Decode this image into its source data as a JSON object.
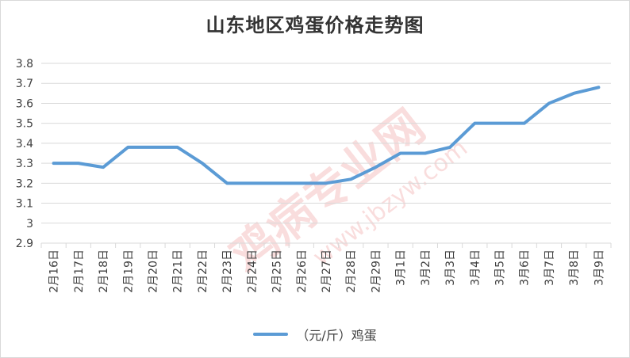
{
  "chart_data": {
    "type": "line",
    "title": "山东地区鸡蛋价格走势图",
    "categories": [
      "2月16日",
      "2月17日",
      "2月18日",
      "2月19日",
      "2月20日",
      "2月21日",
      "2月22日",
      "2月23日",
      "2月24日",
      "2月25日",
      "2月26日",
      "2月27日",
      "2月28日",
      "2月29日",
      "3月1日",
      "3月2日",
      "3月3日",
      "3月4日",
      "3月5日",
      "3月6日",
      "3月7日",
      "3月8日",
      "3月9日"
    ],
    "series": [
      {
        "name": "（元/斤）鸡蛋",
        "values": [
          3.3,
          3.3,
          3.28,
          3.38,
          3.38,
          3.38,
          3.3,
          3.2,
          3.2,
          3.2,
          3.2,
          3.2,
          3.22,
          3.28,
          3.35,
          3.35,
          3.38,
          3.5,
          3.5,
          3.5,
          3.6,
          3.65,
          3.68
        ]
      }
    ],
    "ylim": [
      2.9,
      3.8
    ],
    "yticks": [
      "2.9",
      "3",
      "3.1",
      "3.2",
      "3.3",
      "3.4",
      "3.5",
      "3.6",
      "3.7",
      "3.8"
    ],
    "grid": true,
    "legend_position": "bottom",
    "colors": {
      "line": "#5b9bd5",
      "grid": "#d9d9d9"
    }
  }
}
